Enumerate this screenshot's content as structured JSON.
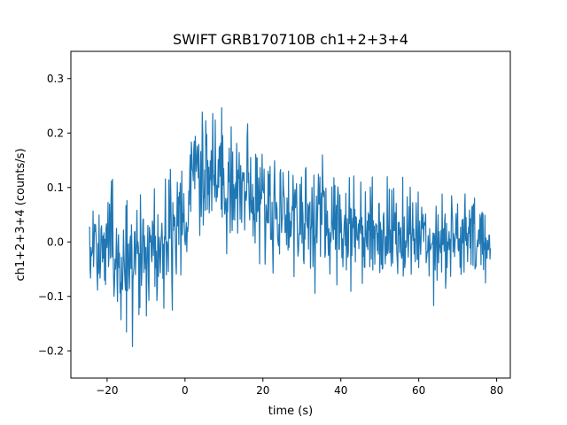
{
  "chart_data": {
    "type": "line",
    "title": "SWIFT GRB170710B ch1+2+3+4",
    "xlabel": "time (s)",
    "ylabel": "ch1+2+3+4 (counts/s)",
    "xlim": [
      -29.3,
      83.5
    ],
    "ylim": [
      -0.25,
      0.35
    ],
    "x_ticks": [
      -20,
      0,
      20,
      40,
      60,
      80
    ],
    "y_ticks": [
      -0.2,
      -0.1,
      0.0,
      0.1,
      0.2,
      0.3
    ],
    "x_tick_labels": [
      "−20",
      "0",
      "20",
      "40",
      "60",
      "80"
    ],
    "y_tick_labels": [
      "−0.2",
      "−0.1",
      "0.0",
      "0.1",
      "0.2",
      "0.3"
    ],
    "grid": false,
    "legend": "none",
    "series": [
      {
        "color": "#1f77b4",
        "x_range": [
          -24.5,
          78.5
        ],
        "sample_step": 0.128,
        "envelope_points": [
          {
            "x": -24.5,
            "mean": 0.0,
            "spread": 0.07
          },
          {
            "x": -20.0,
            "mean": -0.01,
            "spread": 0.075
          },
          {
            "x": -14.0,
            "mean": -0.02,
            "spread": 0.08
          },
          {
            "x": -8.0,
            "mean": -0.01,
            "spread": 0.075
          },
          {
            "x": -2.0,
            "mean": 0.01,
            "spread": 0.07
          },
          {
            "x": 0.5,
            "mean": 0.04,
            "spread": 0.07
          },
          {
            "x": 2.0,
            "mean": 0.14,
            "spread": 0.075
          },
          {
            "x": 8.0,
            "mean": 0.13,
            "spread": 0.075
          },
          {
            "x": 14.0,
            "mean": 0.1,
            "spread": 0.075
          },
          {
            "x": 20.0,
            "mean": 0.07,
            "spread": 0.072
          },
          {
            "x": 30.0,
            "mean": 0.045,
            "spread": 0.07
          },
          {
            "x": 45.0,
            "mean": 0.025,
            "spread": 0.065
          },
          {
            "x": 60.0,
            "mean": 0.01,
            "spread": 0.06
          },
          {
            "x": 78.5,
            "mean": 0.0,
            "spread": 0.055
          }
        ]
      }
    ]
  }
}
